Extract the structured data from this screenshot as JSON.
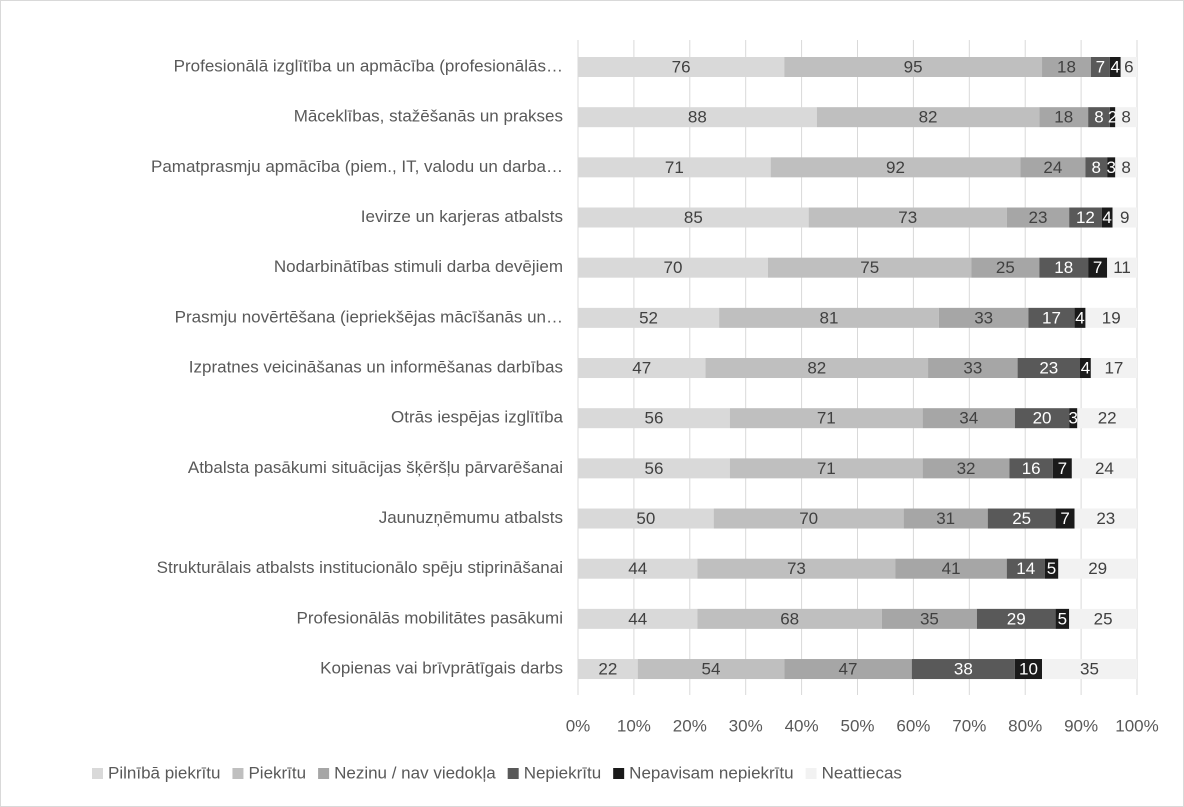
{
  "chart_data": {
    "type": "bar",
    "orientation": "horizontal",
    "stacked": "percent",
    "categories": [
      "Profesionālā izglītība un apmācība (profesionālās…",
      "Māceklības, stažēšanās un prakses",
      "Pamatprasmju apmācība (piem., IT, valodu un darba…",
      "Ievirze un karjeras atbalsts",
      "Nodarbinātības stimuli darba devējiem",
      "Prasmju novērtēšana (iepriekšējas mācīšanās un…",
      "Izpratnes veicināšanas un informēšanas darbības",
      "Otrās iespējas izglītība",
      "Atbalsta pasākumi situācijas šķēršļu pārvarēšanai",
      "Jaunuzņēmumu atbalsts",
      "Strukturālais atbalsts institucionālo spēju stiprināšanai",
      "Profesionālās mobilitātes pasākumi",
      "Kopienas vai brīvprātīgais darbs"
    ],
    "series": [
      {
        "name": "Pilnībā piekrītu",
        "color": "#d9d9d9",
        "values": [
          76,
          88,
          71,
          85,
          70,
          52,
          47,
          56,
          56,
          50,
          44,
          44,
          22
        ]
      },
      {
        "name": "Piekrītu",
        "color": "#bfbfbf",
        "values": [
          95,
          82,
          92,
          73,
          75,
          81,
          82,
          71,
          71,
          70,
          73,
          68,
          54
        ]
      },
      {
        "name": "Nezinu / nav viedokļa",
        "color": "#a6a6a6",
        "values": [
          18,
          18,
          24,
          23,
          25,
          33,
          33,
          34,
          32,
          31,
          41,
          35,
          47
        ]
      },
      {
        "name": "Nepiekrītu",
        "color": "#595959",
        "values": [
          7,
          8,
          8,
          12,
          18,
          17,
          23,
          20,
          16,
          25,
          14,
          29,
          38
        ]
      },
      {
        "name": "Nepavisam nepiekrītu",
        "color": "#1a1a1a",
        "values": [
          4,
          2,
          3,
          4,
          7,
          4,
          4,
          3,
          7,
          7,
          5,
          5,
          10
        ]
      },
      {
        "name": "Neattiecas",
        "color": "#f2f2f2",
        "values": [
          6,
          8,
          8,
          9,
          11,
          19,
          17,
          22,
          24,
          23,
          29,
          25,
          35
        ]
      }
    ],
    "xlim": [
      0,
      100
    ],
    "xticks": [
      {
        "value": 0,
        "label": "0%"
      },
      {
        "value": 10,
        "label": "10%"
      },
      {
        "value": 20,
        "label": "20%"
      },
      {
        "value": 30,
        "label": "30%"
      },
      {
        "value": 40,
        "label": "40%"
      },
      {
        "value": 50,
        "label": "50%"
      },
      {
        "value": 60,
        "label": "60%"
      },
      {
        "value": 70,
        "label": "70%"
      },
      {
        "value": 80,
        "label": "80%"
      },
      {
        "value": 90,
        "label": "90%"
      },
      {
        "value": 100,
        "label": "100%"
      }
    ],
    "grid": true,
    "legend": "bottom"
  }
}
